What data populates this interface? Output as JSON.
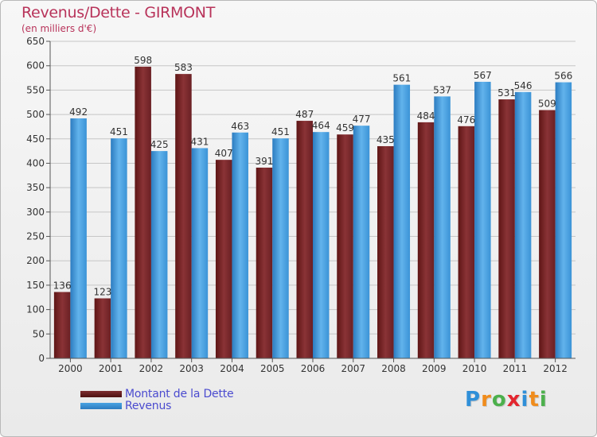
{
  "chart": {
    "title": "Revenus/Dette - GIRMONT",
    "subtitle": "(en milliers d'€)"
  },
  "legend": {
    "debt_label": "Montant de la Dette",
    "revenue_label": "Revenus"
  },
  "logo": {
    "text": "Proxiti",
    "letters": [
      "P",
      "r",
      "o",
      "x",
      "i",
      "t",
      "i"
    ],
    "colors": [
      "#2f8fd8",
      "#f08c1c",
      "#4cb04c",
      "#e3262f",
      "#2f8fd8",
      "#f08c1c",
      "#4cb04c"
    ]
  },
  "colors": {
    "debt": "#7c2d30",
    "debt_light": "#9b3a3e",
    "debt_dark": "#5e1515",
    "revenue": "#4aa3e2",
    "revenue_light": "#68b8ee",
    "revenue_dark": "#2c7cc0",
    "grid": "#c6c6c6",
    "axis": "#555555"
  },
  "chart_data": {
    "type": "bar",
    "title": "Revenus/Dette - GIRMONT",
    "subtitle": "(en milliers d'€)",
    "categories": [
      "2000",
      "2001",
      "2002",
      "2003",
      "2004",
      "2005",
      "2006",
      "2007",
      "2008",
      "2009",
      "2010",
      "2011",
      "2012"
    ],
    "series": [
      {
        "name": "Montant de la Dette",
        "values": [
          136,
          123,
          598,
          583,
          407,
          391,
          487,
          459,
          435,
          484,
          476,
          531,
          509
        ]
      },
      {
        "name": "Revenus",
        "values": [
          492,
          451,
          425,
          431,
          463,
          451,
          464,
          477,
          561,
          537,
          567,
          546,
          566
        ]
      }
    ],
    "ylim": [
      0,
      650
    ],
    "yticks": [
      0,
      50,
      100,
      150,
      200,
      250,
      300,
      350,
      400,
      450,
      500,
      550,
      600,
      650
    ],
    "grid": true,
    "legend_position": "bottom-left"
  }
}
